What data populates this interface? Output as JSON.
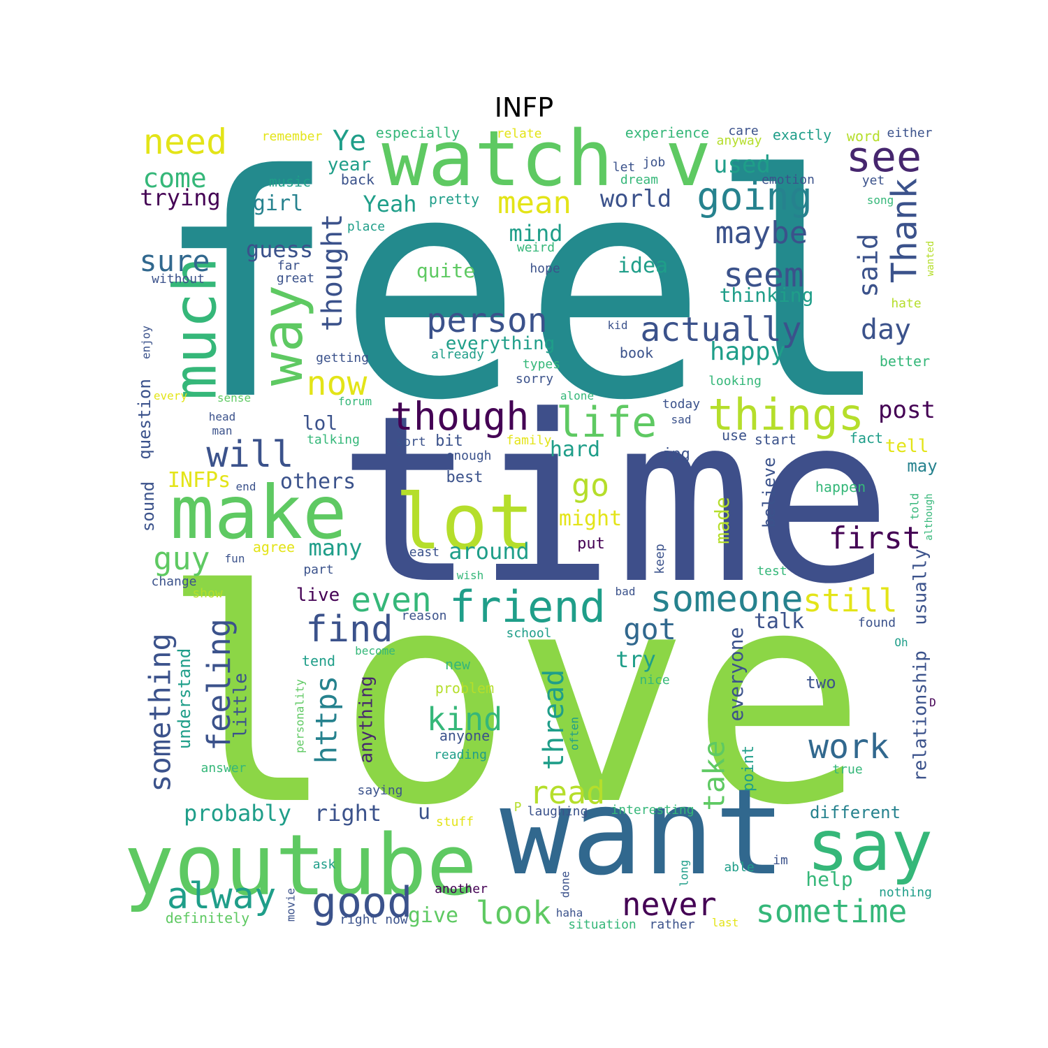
{
  "title": "INFP",
  "palette": {
    "teal": "#238a8d",
    "navy": "#3e4f8a",
    "green": "#8cd646",
    "lime": "#b5de2b",
    "yellow": "#e3e418",
    "mid_green": "#5ec962",
    "sea_green": "#35b779",
    "purple": "#46266e",
    "dark_purple": "#440154",
    "blue": "#31688e",
    "slate": "#3b528b",
    "cyan": "#1f9e89",
    "aqua": "#26828e"
  },
  "words": [
    {
      "text": "feel",
      "color": "teal"
    },
    {
      "text": "love",
      "color": "green"
    },
    {
      "text": "time",
      "color": "navy"
    },
    {
      "text": "want",
      "color": "blue"
    },
    {
      "text": "watch",
      "color": "mid_green"
    },
    {
      "text": "v",
      "color": "mid_green"
    },
    {
      "text": "youtube",
      "color": "mid_green"
    },
    {
      "text": "make",
      "color": "mid_green"
    },
    {
      "text": "lot",
      "color": "lime"
    },
    {
      "text": "much",
      "color": "sea_green"
    },
    {
      "text": "way",
      "color": "mid_green"
    },
    {
      "text": "say",
      "color": "sea_green"
    },
    {
      "text": "things",
      "color": "lime"
    },
    {
      "text": "friend",
      "color": "cyan"
    },
    {
      "text": "someone",
      "color": "aqua"
    },
    {
      "text": "though",
      "color": "dark_purple"
    },
    {
      "text": "life",
      "color": "mid_green"
    },
    {
      "text": "see",
      "color": "purple"
    },
    {
      "text": "need",
      "color": "yellow"
    },
    {
      "text": "going",
      "color": "aqua"
    },
    {
      "text": "person",
      "color": "slate"
    },
    {
      "text": "actually",
      "color": "slate"
    },
    {
      "text": "seem",
      "color": "slate"
    },
    {
      "text": "maybe",
      "color": "slate"
    },
    {
      "text": "Thank",
      "color": "slate"
    },
    {
      "text": "mean",
      "color": "yellow"
    },
    {
      "text": "Ye",
      "color": "cyan"
    },
    {
      "text": "come",
      "color": "sea_green"
    },
    {
      "text": "trying",
      "color": "dark_purple"
    },
    {
      "text": "sure",
      "color": "blue"
    },
    {
      "text": "thought",
      "color": "slate"
    },
    {
      "text": "now",
      "color": "yellow"
    },
    {
      "text": "will",
      "color": "slate"
    },
    {
      "text": "go",
      "color": "lime"
    },
    {
      "text": "even",
      "color": "sea_green"
    },
    {
      "text": "find",
      "color": "slate"
    },
    {
      "text": "first",
      "color": "dark_purple"
    },
    {
      "text": "still",
      "color": "yellow"
    },
    {
      "text": "got",
      "color": "blue"
    },
    {
      "text": "work",
      "color": "blue"
    },
    {
      "text": "kind",
      "color": "sea_green"
    },
    {
      "text": "read",
      "color": "lime"
    },
    {
      "text": "good",
      "color": "slate"
    },
    {
      "text": "alway",
      "color": "cyan"
    },
    {
      "text": "look",
      "color": "mid_green"
    },
    {
      "text": "never",
      "color": "dark_purple"
    },
    {
      "text": "sometime",
      "color": "sea_green"
    },
    {
      "text": "guy",
      "color": "mid_green"
    },
    {
      "text": "something",
      "color": "slate"
    },
    {
      "text": "feeling",
      "color": "slate"
    },
    {
      "text": "https",
      "color": "aqua"
    },
    {
      "text": "thread",
      "color": "cyan"
    },
    {
      "text": "take",
      "color": "mid_green"
    },
    {
      "text": "day",
      "color": "slate"
    },
    {
      "text": "happy",
      "color": "cyan"
    },
    {
      "text": "said",
      "color": "slate"
    },
    {
      "text": "post",
      "color": "dark_purple"
    },
    {
      "text": "world",
      "color": "slate"
    },
    {
      "text": "used",
      "color": "cyan"
    },
    {
      "text": "mind",
      "color": "cyan"
    },
    {
      "text": "Yeah",
      "color": "cyan"
    },
    {
      "text": "guess",
      "color": "slate"
    },
    {
      "text": "girl",
      "color": "aqua"
    },
    {
      "text": "year",
      "color": "cyan"
    },
    {
      "text": "idea",
      "color": "cyan"
    },
    {
      "text": "quite",
      "color": "mid_green"
    },
    {
      "text": "thinking",
      "color": "cyan"
    },
    {
      "text": "everything",
      "color": "cyan"
    },
    {
      "text": "lol",
      "color": "slate"
    },
    {
      "text": "hard",
      "color": "cyan"
    },
    {
      "text": "might",
      "color": "yellow"
    },
    {
      "text": "around",
      "color": "cyan"
    },
    {
      "text": "many",
      "color": "cyan"
    },
    {
      "text": "others",
      "color": "slate"
    },
    {
      "text": "INFPs",
      "color": "yellow"
    },
    {
      "text": "probably",
      "color": "cyan"
    },
    {
      "text": "right",
      "color": "slate"
    },
    {
      "text": "u",
      "color": "slate"
    },
    {
      "text": "talk",
      "color": "slate"
    },
    {
      "text": "try",
      "color": "cyan"
    },
    {
      "text": "tell",
      "color": "yellow"
    },
    {
      "text": "may",
      "color": "aqua"
    },
    {
      "text": "give",
      "color": "mid_green"
    },
    {
      "text": "help",
      "color": "sea_green"
    },
    {
      "text": "different",
      "color": "aqua"
    },
    {
      "text": "live",
      "color": "dark_purple"
    },
    {
      "text": "relationship",
      "color": "slate"
    },
    {
      "text": "usually",
      "color": "slate"
    },
    {
      "text": "everyone",
      "color": "slate"
    },
    {
      "text": "made",
      "color": "lime"
    },
    {
      "text": "believe",
      "color": "slate"
    },
    {
      "text": "anything",
      "color": "purple"
    },
    {
      "text": "little",
      "color": "slate"
    },
    {
      "text": "understand",
      "color": "cyan"
    },
    {
      "text": "question",
      "color": "slate"
    },
    {
      "text": "sound",
      "color": "slate"
    },
    {
      "text": "point",
      "color": "cyan"
    },
    {
      "text": "two",
      "color": "slate"
    },
    {
      "text": "put",
      "color": "dark_purple"
    },
    {
      "text": "best",
      "color": "slate"
    },
    {
      "text": "bit",
      "color": "slate"
    },
    {
      "text": "jpg",
      "color": "slate"
    },
    {
      "text": "use",
      "color": "slate"
    },
    {
      "text": "start",
      "color": "slate"
    },
    {
      "text": "fact",
      "color": "cyan"
    },
    {
      "text": "sort",
      "color": "slate"
    },
    {
      "text": "remember",
      "color": "yellow"
    },
    {
      "text": "especially",
      "color": "sea_green"
    },
    {
      "text": "relate",
      "color": "yellow"
    },
    {
      "text": "experience",
      "color": "sea_green"
    },
    {
      "text": "care",
      "color": "slate"
    },
    {
      "text": "anyway",
      "color": "lime"
    },
    {
      "text": "exactly",
      "color": "cyan"
    },
    {
      "text": "word",
      "color": "lime"
    },
    {
      "text": "either",
      "color": "slate"
    },
    {
      "text": "music",
      "color": "cyan"
    },
    {
      "text": "back",
      "color": "slate"
    },
    {
      "text": "pretty",
      "color": "cyan"
    },
    {
      "text": "job",
      "color": "slate"
    },
    {
      "text": "let",
      "color": "slate"
    },
    {
      "text": "dream",
      "color": "sea_green"
    },
    {
      "text": "emotion",
      "color": "slate"
    },
    {
      "text": "yet",
      "color": "slate"
    },
    {
      "text": "song",
      "color": "sea_green"
    },
    {
      "text": "place",
      "color": "cyan"
    },
    {
      "text": "weird",
      "color": "sea_green"
    },
    {
      "text": "hope",
      "color": "slate"
    },
    {
      "text": "far",
      "color": "slate"
    },
    {
      "text": "great",
      "color": "slate"
    },
    {
      "text": "without",
      "color": "slate"
    },
    {
      "text": "wanted",
      "color": "lime"
    },
    {
      "text": "hate",
      "color": "lime"
    },
    {
      "text": "kid",
      "color": "slate"
    },
    {
      "text": "book",
      "color": "slate"
    },
    {
      "text": "already",
      "color": "cyan"
    },
    {
      "text": "getting",
      "color": "slate"
    },
    {
      "text": "types",
      "color": "sea_green"
    },
    {
      "text": "sorry",
      "color": "slate"
    },
    {
      "text": "better",
      "color": "sea_green"
    },
    {
      "text": "looking",
      "color": "sea_green"
    },
    {
      "text": "enjoy",
      "color": "slate"
    },
    {
      "text": "every",
      "color": "yellow"
    },
    {
      "text": "sense",
      "color": "mid_green"
    },
    {
      "text": "forum",
      "color": "sea_green"
    },
    {
      "text": "alone",
      "color": "sea_green"
    },
    {
      "text": "today",
      "color": "slate"
    },
    {
      "text": "sad",
      "color": "slate"
    },
    {
      "text": "head",
      "color": "slate"
    },
    {
      "text": "man",
      "color": "slate"
    },
    {
      "text": "talking",
      "color": "sea_green"
    },
    {
      "text": "family",
      "color": "yellow"
    },
    {
      "text": "enough",
      "color": "slate"
    },
    {
      "text": "end",
      "color": "slate"
    },
    {
      "text": "happen",
      "color": "sea_green"
    },
    {
      "text": "told",
      "color": "sea_green"
    },
    {
      "text": "although",
      "color": "sea_green"
    },
    {
      "text": "agree",
      "color": "yellow"
    },
    {
      "text": "least",
      "color": "slate"
    },
    {
      "text": "keep",
      "color": "slate"
    },
    {
      "text": "fun",
      "color": "slate"
    },
    {
      "text": "part",
      "color": "slate"
    },
    {
      "text": "change",
      "color": "slate"
    },
    {
      "text": "wish",
      "color": "sea_green"
    },
    {
      "text": "test",
      "color": "sea_green"
    },
    {
      "text": "show",
      "color": "lime"
    },
    {
      "text": "bad",
      "color": "slate"
    },
    {
      "text": "reason",
      "color": "slate"
    },
    {
      "text": "school",
      "color": "cyan"
    },
    {
      "text": "found",
      "color": "slate"
    },
    {
      "text": "tend",
      "color": "cyan"
    },
    {
      "text": "become",
      "color": "sea_green"
    },
    {
      "text": "Oh",
      "color": "cyan"
    },
    {
      "text": "new",
      "color": "sea_green"
    },
    {
      "text": "nice",
      "color": "sea_green"
    },
    {
      "text": "problem",
      "color": "lime"
    },
    {
      "text": "D",
      "color": "dark_purple"
    },
    {
      "text": "personality",
      "color": "mid_green"
    },
    {
      "text": "anyone",
      "color": "slate"
    },
    {
      "text": "often",
      "color": "cyan"
    },
    {
      "text": "reading",
      "color": "cyan"
    },
    {
      "text": "answer",
      "color": "sea_green"
    },
    {
      "text": "true",
      "color": "sea_green"
    },
    {
      "text": "saying",
      "color": "slate"
    },
    {
      "text": "P",
      "color": "lime"
    },
    {
      "text": "laughing",
      "color": "slate"
    },
    {
      "text": "interesting",
      "color": "sea_green"
    },
    {
      "text": "stuff",
      "color": "yellow"
    },
    {
      "text": "ask",
      "color": "cyan"
    },
    {
      "text": "movie",
      "color": "slate"
    },
    {
      "text": "another",
      "color": "dark_purple"
    },
    {
      "text": "done",
      "color": "slate"
    },
    {
      "text": "long",
      "color": "cyan"
    },
    {
      "text": "able",
      "color": "cyan"
    },
    {
      "text": "im",
      "color": "slate"
    },
    {
      "text": "nothing",
      "color": "cyan"
    },
    {
      "text": "definitely",
      "color": "mid_green"
    },
    {
      "text": "right now",
      "color": "slate"
    },
    {
      "text": "haha",
      "color": "slate"
    },
    {
      "text": "situation",
      "color": "sea_green"
    },
    {
      "text": "rather",
      "color": "slate"
    },
    {
      "text": "last",
      "color": "yellow"
    }
  ]
}
